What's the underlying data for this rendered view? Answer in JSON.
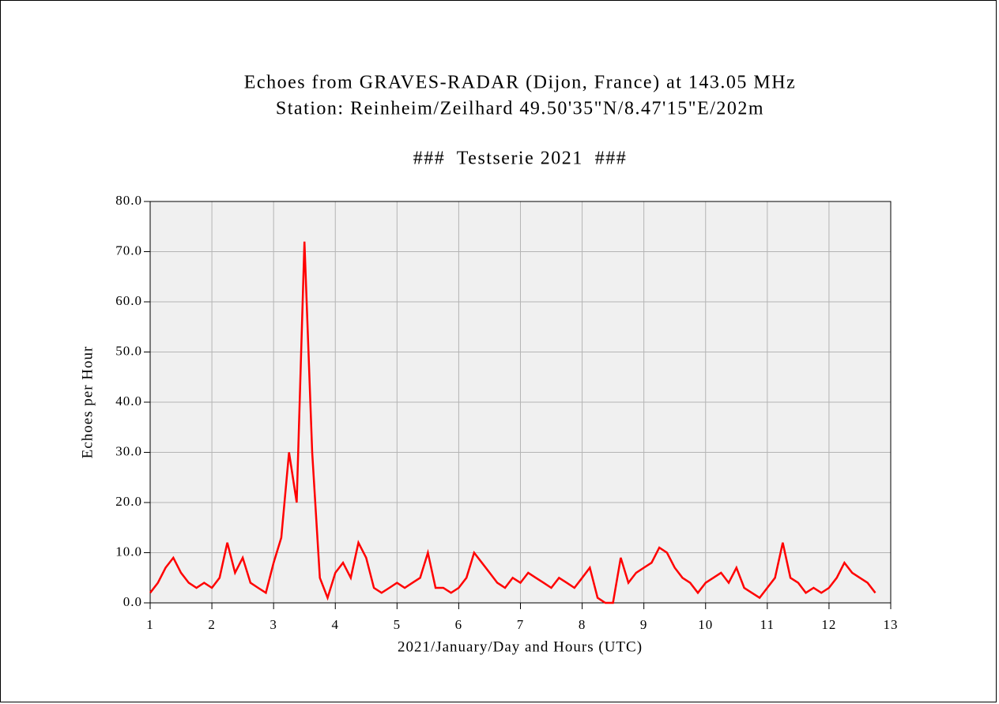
{
  "chart_data": {
    "type": "line",
    "title": "Echoes from GRAVES-RADAR (Dijon, France) at 143.05 MHz",
    "subtitle": "Station: Reinheim/Zeilhard 49.50'35\"N/8.47'15\"E/202m",
    "annotation": "###  Testserie 2021  ###",
    "x_label": "2021/January/Day and Hours (UTC)",
    "y_label": "Echoes per Hour",
    "color": "#ff0000",
    "grid": true,
    "xlim": [
      1,
      13
    ],
    "xticks": [
      1,
      2,
      3,
      4,
      5,
      6,
      7,
      8,
      9,
      10,
      11,
      12,
      13
    ],
    "ylim": [
      0,
      80
    ],
    "yticks": [
      {
        "value": 0,
        "label": "0.0"
      },
      {
        "value": 10,
        "label": "10.0"
      },
      {
        "value": 20,
        "label": "20.0"
      },
      {
        "value": 30,
        "label": "30.0"
      },
      {
        "value": 40,
        "label": "40.0"
      },
      {
        "value": 50,
        "label": "50.0"
      },
      {
        "value": 60,
        "label": "60.0"
      },
      {
        "value": 70,
        "label": "70.0"
      },
      {
        "value": 80,
        "label": "80.0"
      }
    ],
    "x": [
      1.0,
      1.125,
      1.25,
      1.375,
      1.5,
      1.625,
      1.75,
      1.875,
      2.0,
      2.125,
      2.25,
      2.375,
      2.5,
      2.625,
      2.75,
      2.875,
      3.0,
      3.125,
      3.25,
      3.375,
      3.5,
      3.625,
      3.75,
      3.875,
      4.0,
      4.125,
      4.25,
      4.375,
      4.5,
      4.625,
      4.75,
      4.875,
      5.0,
      5.125,
      5.25,
      5.375,
      5.5,
      5.625,
      5.75,
      5.875,
      6.0,
      6.125,
      6.25,
      6.375,
      6.5,
      6.625,
      6.75,
      6.875,
      7.0,
      7.125,
      7.25,
      7.375,
      7.5,
      7.625,
      7.75,
      7.875,
      8.0,
      8.125,
      8.25,
      8.375,
      8.5,
      8.625,
      8.75,
      8.875,
      9.0,
      9.125,
      9.25,
      9.375,
      9.5,
      9.625,
      9.75,
      9.875,
      10.0,
      10.125,
      10.25,
      10.375,
      10.5,
      10.625,
      10.75,
      10.875,
      11.0,
      11.125,
      11.25,
      11.375,
      11.5,
      11.625,
      11.75,
      11.875,
      12.0,
      12.125,
      12.25,
      12.375,
      12.5,
      12.625,
      12.75
    ],
    "values": [
      2,
      4,
      7,
      9,
      6,
      4,
      3,
      4,
      3,
      5,
      12,
      6,
      9,
      4,
      3,
      2,
      8,
      13,
      30,
      20,
      72,
      30,
      5,
      1,
      6,
      8,
      5,
      12,
      9,
      3,
      2,
      3,
      4,
      3,
      4,
      5,
      10,
      3,
      3,
      2,
      3,
      5,
      10,
      8,
      6,
      4,
      3,
      5,
      4,
      6,
      5,
      4,
      3,
      5,
      4,
      3,
      5,
      7,
      1,
      0,
      0,
      9,
      4,
      6,
      7,
      8,
      11,
      10,
      7,
      5,
      4,
      2,
      4,
      5,
      6,
      4,
      7,
      3,
      2,
      1,
      3,
      5,
      12,
      5,
      4,
      2,
      3,
      2,
      3,
      5,
      8,
      6,
      5,
      4,
      2
    ]
  }
}
